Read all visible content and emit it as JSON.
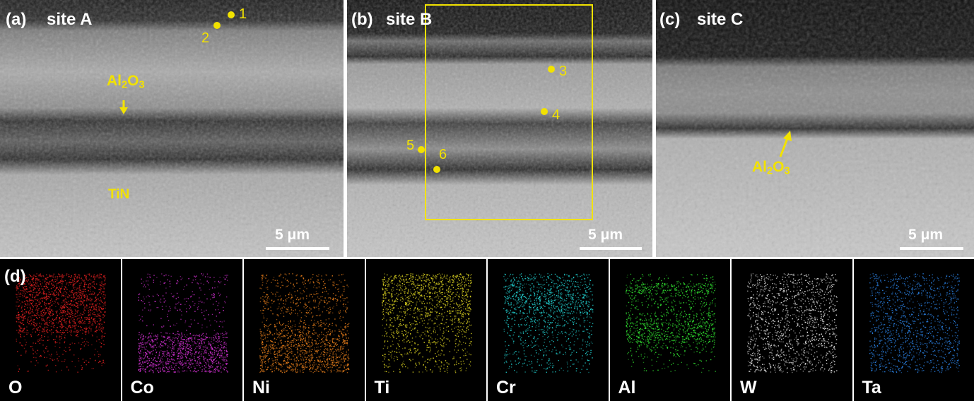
{
  "panels": {
    "a": {
      "label": "(a)",
      "title": "site A",
      "scale_text": "5 μm",
      "points": [
        "1",
        "2"
      ],
      "annotations": {
        "oxide_main": "Al",
        "oxide_sub1": "2",
        "oxide_mid": "O",
        "oxide_sub2": "3",
        "nitride": "TiN"
      }
    },
    "b": {
      "label": "(b)",
      "title": "site B",
      "scale_text": "5 μm",
      "points": [
        "3",
        "4",
        "5",
        "6"
      ]
    },
    "c": {
      "label": "(c)",
      "title": "site C",
      "scale_text": "5 μm",
      "annotations": {
        "oxide_main": "Al",
        "oxide_sub1": "2",
        "oxide_mid": "O",
        "oxide_sub2": "3"
      }
    },
    "d": {
      "label": "(d)"
    }
  },
  "eds_maps": [
    {
      "element": "O",
      "color": "#e02020"
    },
    {
      "element": "Co",
      "color": "#d030d0"
    },
    {
      "element": "Ni",
      "color": "#e07a1a"
    },
    {
      "element": "Ti",
      "color": "#d8cf20"
    },
    {
      "element": "Cr",
      "color": "#20c8c8"
    },
    {
      "element": "Al",
      "color": "#30e030"
    },
    {
      "element": "W",
      "color": "#e0e0e0"
    },
    {
      "element": "Ta",
      "color": "#2a7fe0"
    }
  ],
  "colors": {
    "annotation": "#f2e200",
    "label": "#ffffff"
  }
}
